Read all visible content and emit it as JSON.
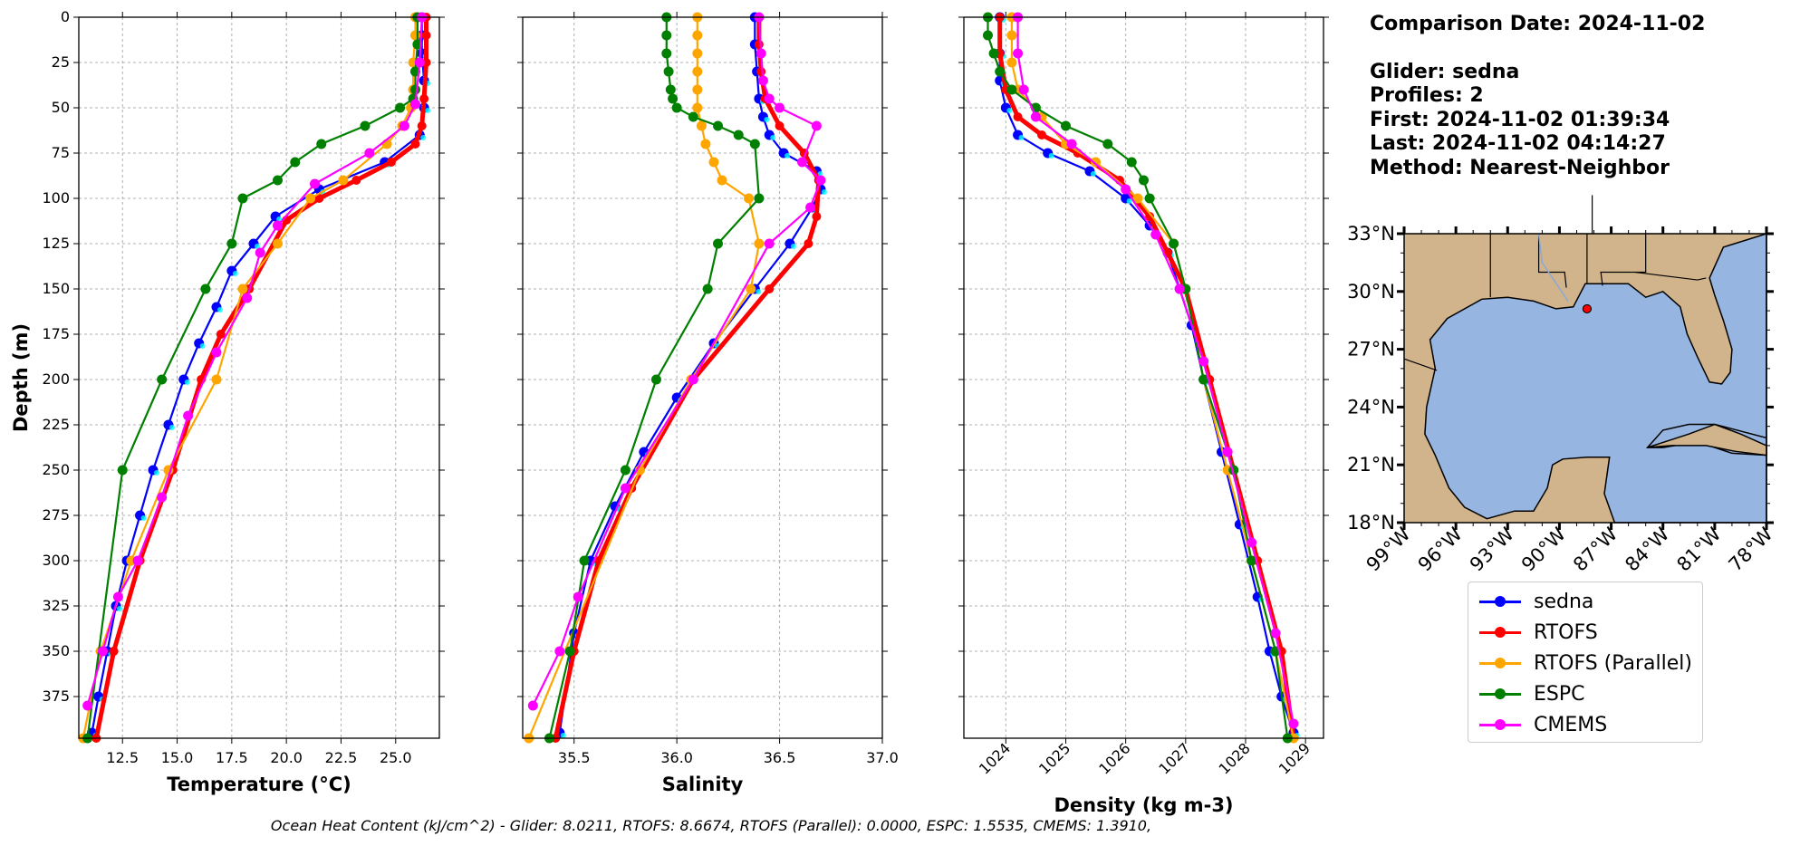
{
  "info": {
    "comparison_date": "Comparison Date: 2024-11-02",
    "glider": "Glider: sedna",
    "profiles": "Profiles: 2",
    "first": "First: 2024-11-02 01:39:34",
    "last": "Last: 2024-11-02 04:14:27",
    "method": "Method: Nearest-Neighbor"
  },
  "footer": "Ocean Heat Content (kJ/cm^2) - Glider: 8.0211,  RTOFS: 8.6674,  RTOFS (Parallel): 0.0000,  ESPC: 1.5535,  CMEMS: 1.3910,",
  "legend": [
    {
      "name": "sedna",
      "color": "#0000ff"
    },
    {
      "name": "RTOFS",
      "color": "#ff0000"
    },
    {
      "name": "RTOFS (Parallel)",
      "color": "#ffa500"
    },
    {
      "name": "ESPC",
      "color": "#008000"
    },
    {
      "name": "CMEMS",
      "color": "#ff00ff"
    }
  ],
  "chart_data": [
    {
      "type": "line",
      "xlabel": "Temperature (°C)",
      "ylabel": "Depth (m)",
      "xlim": [
        10.5,
        27.0
      ],
      "ylim": [
        398,
        0
      ],
      "xticks": [
        "12.5",
        "15.0",
        "17.5",
        "20.0",
        "22.5",
        "25.0"
      ],
      "yticks": [
        "0",
        "25",
        "50",
        "75",
        "100",
        "125",
        "150",
        "175",
        "200",
        "225",
        "250",
        "275",
        "300",
        "325",
        "350",
        "375"
      ],
      "grid": true,
      "series": [
        {
          "name": "sedna",
          "color": "#0000ff",
          "x": [
            26.2,
            26.2,
            26.2,
            26.3,
            26.3,
            26.1,
            24.5,
            21.5,
            19.5,
            18.5,
            17.5,
            16.8,
            16.0,
            15.3,
            14.6,
            13.9,
            13.3,
            12.7,
            12.2,
            11.8,
            11.4,
            11.1
          ],
          "y": [
            0,
            10,
            20,
            35,
            50,
            65,
            80,
            95,
            110,
            125,
            140,
            160,
            180,
            200,
            225,
            250,
            275,
            300,
            325,
            350,
            375,
            395
          ]
        },
        {
          "name": "RTOFS",
          "color": "#ff0000",
          "x": [
            26.4,
            26.4,
            26.4,
            26.3,
            26.2,
            25.9,
            24.8,
            23.2,
            21.5,
            20.0,
            18.3,
            17.0,
            16.1,
            14.8,
            13.3,
            12.1,
            11.3
          ],
          "y": [
            0,
            10,
            25,
            45,
            60,
            70,
            80,
            90,
            100,
            112,
            150,
            175,
            200,
            250,
            300,
            350,
            398
          ]
        },
        {
          "name": "RTOFS (Parallel)",
          "color": "#ffa500",
          "x": [
            25.9,
            25.9,
            25.8,
            25.8,
            25.7,
            25.3,
            24.6,
            22.6,
            21.1,
            19.6,
            18.0,
            16.8,
            14.6,
            12.9,
            11.5,
            10.7
          ],
          "y": [
            0,
            10,
            25,
            40,
            50,
            60,
            70,
            90,
            100,
            125,
            150,
            200,
            250,
            300,
            350,
            398
          ]
        },
        {
          "name": "ESPC",
          "color": "#008000",
          "x": [
            26.0,
            26.0,
            25.9,
            25.9,
            25.8,
            25.2,
            23.6,
            21.6,
            20.4,
            19.6,
            18.0,
            17.5,
            16.3,
            14.3,
            12.5,
            10.9
          ],
          "y": [
            0,
            15,
            30,
            40,
            45,
            50,
            60,
            70,
            80,
            90,
            100,
            125,
            150,
            200,
            250,
            398
          ]
        },
        {
          "name": "CMEMS",
          "color": "#ff00ff",
          "x": [
            26.2,
            26.1,
            25.9,
            25.4,
            23.8,
            21.3,
            19.6,
            18.8,
            18.2,
            16.8,
            15.5,
            14.3,
            13.2,
            12.3,
            11.6,
            10.9
          ],
          "y": [
            0,
            25,
            48,
            60,
            75,
            92,
            115,
            130,
            155,
            185,
            220,
            265,
            300,
            320,
            350,
            380
          ]
        }
      ]
    },
    {
      "type": "line",
      "xlabel": "Salinity",
      "xlim": [
        35.25,
        37.0
      ],
      "ylim": [
        398,
        0
      ],
      "xticks": [
        "35.5",
        "36.0",
        "36.5",
        "37.0"
      ],
      "grid": true,
      "series": [
        {
          "name": "sedna",
          "color": "#0000ff",
          "x": [
            36.38,
            36.38,
            36.39,
            36.4,
            36.42,
            36.45,
            36.52,
            36.68,
            36.7,
            36.66,
            36.55,
            36.38,
            36.18,
            36.0,
            35.84,
            35.7,
            35.58,
            35.5,
            35.43
          ],
          "y": [
            0,
            15,
            30,
            45,
            55,
            65,
            75,
            85,
            95,
            105,
            125,
            150,
            180,
            210,
            240,
            270,
            300,
            340,
            395
          ]
        },
        {
          "name": "RTOFS",
          "color": "#ff0000",
          "x": [
            36.4,
            36.4,
            36.41,
            36.43,
            36.5,
            36.62,
            36.69,
            36.68,
            36.64,
            36.45,
            36.08,
            35.78,
            35.62,
            35.5,
            35.41
          ],
          "y": [
            0,
            15,
            30,
            45,
            60,
            75,
            90,
            110,
            125,
            150,
            200,
            260,
            300,
            350,
            398
          ]
        },
        {
          "name": "RTOFS (Parallel)",
          "color": "#ffa500",
          "x": [
            36.1,
            36.1,
            36.1,
            36.1,
            36.1,
            36.1,
            36.12,
            36.14,
            36.18,
            36.22,
            36.35,
            36.4,
            36.36,
            36.07,
            35.82,
            35.28
          ],
          "y": [
            0,
            10,
            20,
            30,
            40,
            50,
            60,
            70,
            80,
            90,
            100,
            125,
            150,
            200,
            250,
            398
          ]
        },
        {
          "name": "ESPC",
          "color": "#008000",
          "x": [
            35.95,
            35.95,
            35.95,
            35.96,
            35.97,
            35.98,
            36.0,
            36.08,
            36.2,
            36.3,
            36.38,
            36.4,
            36.2,
            36.15,
            35.9,
            35.75,
            35.55,
            35.48,
            35.38
          ],
          "y": [
            0,
            10,
            20,
            30,
            40,
            45,
            50,
            55,
            60,
            65,
            70,
            100,
            125,
            150,
            200,
            250,
            300,
            350,
            398
          ]
        },
        {
          "name": "CMEMS",
          "color": "#ff00ff",
          "x": [
            36.4,
            36.41,
            36.42,
            36.45,
            36.5,
            36.68,
            36.61,
            36.7,
            36.65,
            36.45,
            36.08,
            35.75,
            35.52,
            35.43,
            35.3
          ],
          "y": [
            0,
            20,
            35,
            45,
            50,
            60,
            80,
            90,
            105,
            125,
            200,
            260,
            320,
            350,
            380
          ]
        }
      ]
    },
    {
      "type": "line",
      "xlabel": "Density (kg m-3)",
      "xlim": [
        1023.3,
        1029.3
      ],
      "ylim": [
        398,
        0
      ],
      "xticks": [
        "1024",
        "1025",
        "1026",
        "1027",
        "1028",
        "1029"
      ],
      "grid": true,
      "series": [
        {
          "name": "sedna",
          "color": "#0000ff",
          "x": [
            1023.9,
            1023.9,
            1023.9,
            1024.0,
            1024.2,
            1024.7,
            1025.4,
            1026.0,
            1026.4,
            1026.7,
            1026.9,
            1027.1,
            1027.3,
            1027.6,
            1027.9,
            1028.2,
            1028.4,
            1028.6,
            1028.8
          ],
          "y": [
            0,
            20,
            35,
            50,
            65,
            75,
            85,
            100,
            115,
            130,
            150,
            170,
            200,
            240,
            280,
            320,
            350,
            375,
            395
          ]
        },
        {
          "name": "RTOFS",
          "color": "#ff0000",
          "x": [
            1023.9,
            1023.9,
            1024.0,
            1024.2,
            1024.6,
            1025.2,
            1025.9,
            1026.4,
            1026.7,
            1027.0,
            1027.4,
            1027.8,
            1028.2,
            1028.6,
            1028.8
          ],
          "y": [
            0,
            20,
            40,
            55,
            65,
            75,
            90,
            110,
            130,
            150,
            200,
            250,
            300,
            350,
            398
          ]
        },
        {
          "name": "RTOFS (Parallel)",
          "color": "#ffa500",
          "x": [
            1024.1,
            1024.1,
            1024.1,
            1024.2,
            1024.6,
            1025.0,
            1025.5,
            1026.2,
            1026.8,
            1027.0,
            1027.3,
            1027.7,
            1028.1,
            1028.5,
            1028.8
          ],
          "y": [
            0,
            10,
            25,
            40,
            55,
            70,
            80,
            100,
            125,
            150,
            200,
            250,
            300,
            350,
            398
          ]
        },
        {
          "name": "ESPC",
          "color": "#008000",
          "x": [
            1023.7,
            1023.7,
            1023.8,
            1023.9,
            1024.1,
            1024.5,
            1025.0,
            1025.7,
            1026.1,
            1026.3,
            1026.4,
            1026.8,
            1027.0,
            1027.3,
            1027.8,
            1028.1,
            1028.5,
            1028.7
          ],
          "y": [
            0,
            10,
            20,
            30,
            40,
            50,
            60,
            70,
            80,
            90,
            100,
            125,
            150,
            200,
            250,
            300,
            350,
            398
          ]
        },
        {
          "name": "CMEMS",
          "color": "#ff00ff",
          "x": [
            1024.2,
            1024.2,
            1024.3,
            1024.5,
            1025.1,
            1026.0,
            1026.5,
            1026.9,
            1027.3,
            1027.7,
            1028.1,
            1028.5,
            1028.8
          ],
          "y": [
            0,
            20,
            40,
            55,
            70,
            95,
            120,
            150,
            190,
            240,
            290,
            340,
            390
          ]
        }
      ]
    }
  ],
  "map": {
    "lat_labels": [
      "33°N",
      "30°N",
      "27°N",
      "24°N",
      "21°N",
      "18°N"
    ],
    "lon_labels": [
      "99°W",
      "96°W",
      "93°W",
      "90°W",
      "87°W",
      "84°W",
      "81°W",
      "78°W"
    ],
    "land_color": "#d2b48c",
    "ocean_color": "#96b5e0",
    "glider_position": {
      "lon": -88.4,
      "lat": 29.1
    }
  }
}
